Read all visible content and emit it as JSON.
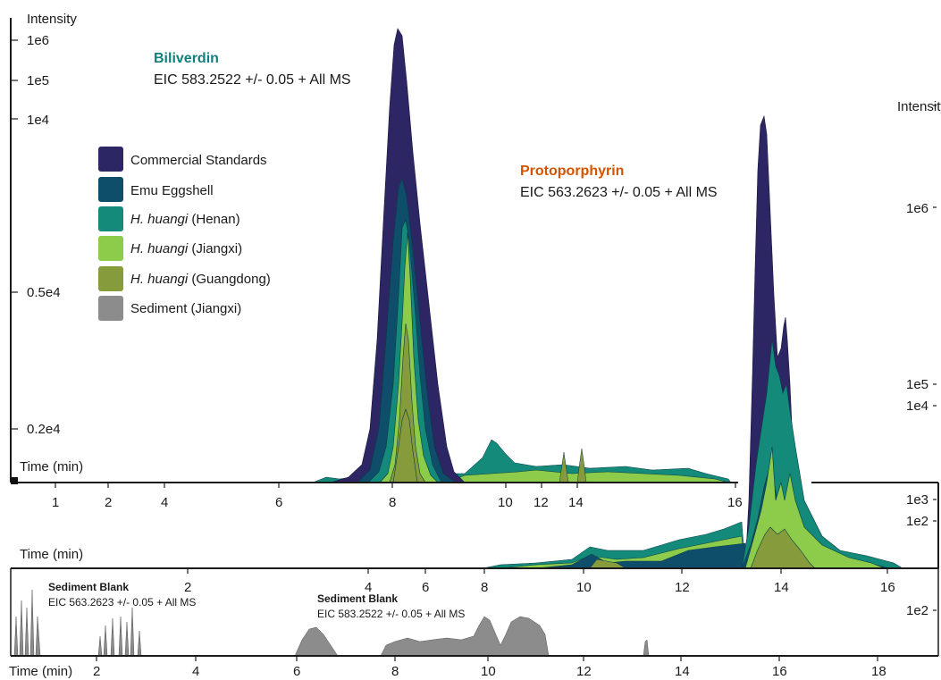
{
  "chart_data": [
    {
      "type": "area",
      "panel": "Biliverdin",
      "title": "Biliverdin",
      "subtitle": "EIC 583.2522 +/- 0.05 + All MS",
      "title_color": "#137f7d",
      "ylabel": "Intensity",
      "xlabel": "Time (min)",
      "x_ticks": [
        1,
        2,
        4,
        6,
        8,
        10,
        12,
        14,
        16
      ],
      "y_ticks": [
        "0.2e4",
        "0.5e4",
        "1e4",
        "1e5",
        "1e6"
      ],
      "series": [
        {
          "name": "Commercial Standards",
          "color": "#2c2764",
          "peak_time": 8.15,
          "peak_intensity": "1e6"
        },
        {
          "name": "Emu Eggshell",
          "color": "#0f4e6b",
          "peak_time": 8.2,
          "peak_intensity": "1e4"
        },
        {
          "name": "H. huangi (Henan)",
          "color": "#138a7a",
          "peak_time": 8.25
        },
        {
          "name": "H. huangi (Jiangxi)",
          "color": "#8dcc4a",
          "peak_time": 8.25
        },
        {
          "name": "H. huangi (Guangdong)",
          "color": "#869b3c",
          "peak_time": 8.25
        },
        {
          "name": "Sediment (Jiangxi)",
          "color": "#8c8c8c"
        }
      ]
    },
    {
      "type": "area",
      "panel": "Protoporphyrin",
      "title": "Protoporphyrin",
      "subtitle": "EIC 563.2623 +/- 0.05 + All MS",
      "title_color": "#d35400",
      "ylabel": "Intensity",
      "xlabel": "Time (min)",
      "x_ticks": [
        2,
        4,
        6,
        8,
        10,
        12,
        14,
        16
      ],
      "y_ticks": [
        "1e2",
        "1e3",
        "1e4",
        "1e5",
        "1e6"
      ],
      "series": [
        {
          "name": "Commercial Standards",
          "color": "#2c2764",
          "peak_time": 13.6
        },
        {
          "name": "Emu Eggshell",
          "color": "#0f4e6b",
          "peak_time": 13.7
        },
        {
          "name": "H. huangi (Henan)",
          "color": "#138a7a",
          "peak_time": 13.7
        },
        {
          "name": "H. huangi (Jiangxi)",
          "color": "#8dcc4a",
          "peak_time": 13.8
        },
        {
          "name": "H. huangi (Guangdong)",
          "color": "#869b3c",
          "peak_time": 13.8
        }
      ]
    },
    {
      "type": "area",
      "panel": "Sediment Blank",
      "xlabel": "Time (min)",
      "x_ticks": [
        2,
        4,
        6,
        8,
        10,
        12,
        14,
        16,
        18
      ],
      "y_ticks": [
        "1e2"
      ],
      "annotations": [
        {
          "title": "Sediment Blank",
          "subtitle": "EIC 563.2623 +/- 0.05 + All MS"
        },
        {
          "title": "Sediment Blank",
          "subtitle": "EIC 583.2522 +/- 0.05 + All MS"
        }
      ]
    }
  ],
  "legend": {
    "items": [
      {
        "name_italic": "",
        "name_rest": "Commercial Standards",
        "color": "#2c2764"
      },
      {
        "name_italic": "",
        "name_rest": "Emu Eggshell",
        "color": "#0f4e6b"
      },
      {
        "name_italic": "H. huangi",
        "name_rest": " (Henan)",
        "color": "#138a7a"
      },
      {
        "name_italic": "H. huangi",
        "name_rest": " (Jiangxi)",
        "color": "#8dcc4a"
      },
      {
        "name_italic": "H. huangi",
        "name_rest": " (Guangdong)",
        "color": "#869b3c"
      },
      {
        "name_italic": "",
        "name_rest": "Sediment (Jiangxi)",
        "color": "#8c8c8c"
      }
    ]
  },
  "labels": {
    "intensity": "Intensity",
    "time": "Time (min)"
  }
}
